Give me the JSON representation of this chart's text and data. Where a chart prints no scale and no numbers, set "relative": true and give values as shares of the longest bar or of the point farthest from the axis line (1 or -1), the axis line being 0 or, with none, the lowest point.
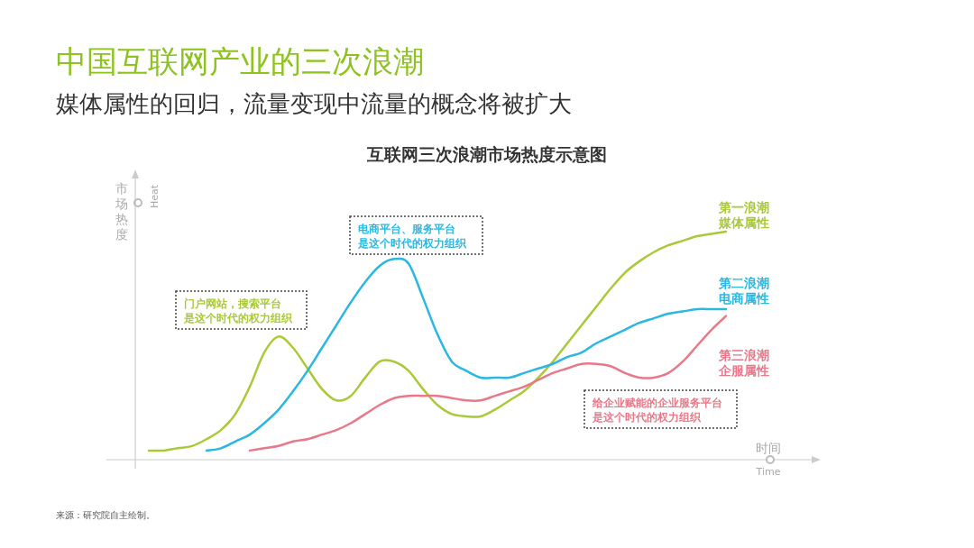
{
  "chart_data": {
    "type": "line",
    "title": "中国互联网产业的三次浪潮",
    "subtitle": "媒体属性的回归，流量变现中流量的概念将被扩大",
    "xlabel": "时间 Time",
    "ylabel": "市场热度 Heat",
    "relative": true,
    "categories": [
      null,
      null,
      null,
      null,
      null,
      null,
      null,
      null,
      null,
      null,
      null,
      null,
      null,
      null,
      null,
      null,
      null,
      null,
      null,
      null,
      null,
      null,
      null,
      null,
      null,
      null,
      null,
      null,
      null,
      null,
      null,
      null,
      null,
      null,
      null,
      null,
      null,
      null,
      null,
      null,
      null
    ],
    "series": [
      {
        "name": "第一浪潮媒体属性",
        "color": "#a9c938",
        "values": [
          0.04,
          0.04,
          0.05,
          0.06,
          0.09,
          0.13,
          0.2,
          0.32,
          0.47,
          0.54,
          0.49,
          0.4,
          0.31,
          0.26,
          0.28,
          0.36,
          0.43,
          0.43,
          0.39,
          0.31,
          0.24,
          0.2,
          0.19,
          0.19,
          0.22,
          0.26,
          0.3,
          0.36,
          0.43,
          0.51,
          0.59,
          0.67,
          0.75,
          0.82,
          0.87,
          0.91,
          0.94,
          0.96,
          0.98,
          0.99,
          1.0
        ]
      },
      {
        "name": "第二浪潮电商属性",
        "color": "#2bb7e0",
        "values": [
          null,
          null,
          null,
          null,
          0.04,
          0.05,
          0.08,
          0.11,
          0.16,
          0.22,
          0.3,
          0.39,
          0.49,
          0.59,
          0.69,
          0.78,
          0.85,
          0.88,
          0.86,
          0.71,
          0.55,
          0.43,
          0.39,
          0.36,
          0.36,
          0.36,
          0.38,
          0.4,
          0.42,
          0.45,
          0.47,
          0.51,
          0.54,
          0.57,
          0.6,
          0.62,
          0.64,
          0.65,
          0.66,
          0.66,
          0.66
        ]
      },
      {
        "name": "第三浪潮企服属性",
        "color": "#e8798a",
        "values": [
          null,
          null,
          null,
          null,
          null,
          null,
          null,
          0.04,
          0.05,
          0.06,
          0.08,
          0.09,
          0.11,
          0.13,
          0.16,
          0.2,
          0.24,
          0.27,
          0.28,
          0.28,
          0.28,
          0.27,
          0.26,
          0.26,
          0.28,
          0.3,
          0.32,
          0.35,
          0.38,
          0.4,
          0.42,
          0.42,
          0.41,
          0.38,
          0.36,
          0.36,
          0.38,
          0.43,
          0.5,
          0.57,
          0.63
        ]
      }
    ],
    "annotations": [
      "互联网三次浪潮市场热度示意图",
      "门户网站，搜索平台是这个时代的权力组织",
      "电商平台、服务平台是这个时代的权力组织",
      "给企业赋能的企业服务平台是这个时代的权力组织",
      "来源：研究院自主绘制。"
    ]
  }
}
